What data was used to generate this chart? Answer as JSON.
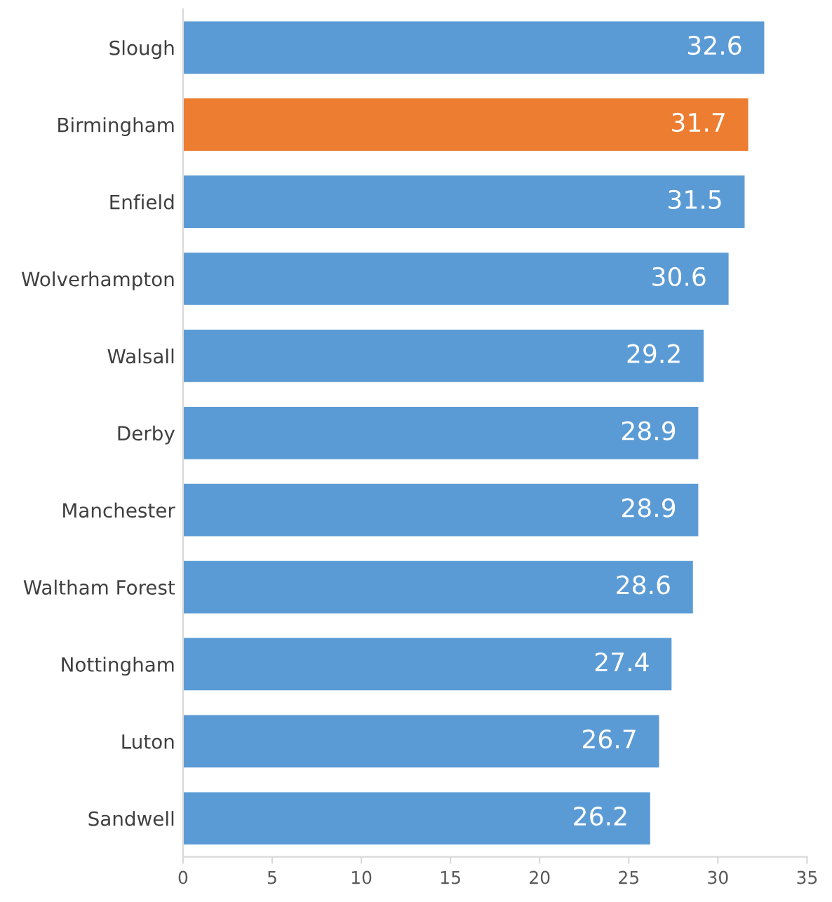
{
  "chart_data": {
    "type": "bar",
    "orientation": "horizontal",
    "categories": [
      "Slough",
      "Birmingham",
      "Enfield",
      "Wolverhampton",
      "Walsall",
      "Derby",
      "Manchester",
      "Waltham Forest",
      "Nottingham",
      "Luton",
      "Sandwell"
    ],
    "values": [
      32.6,
      31.7,
      31.5,
      30.6,
      29.2,
      28.9,
      28.9,
      28.6,
      27.4,
      26.7,
      26.2
    ],
    "colors": [
      "#5b9bd5",
      "#ed7d31",
      "#5b9bd5",
      "#5b9bd5",
      "#5b9bd5",
      "#5b9bd5",
      "#5b9bd5",
      "#5b9bd5",
      "#5b9bd5",
      "#5b9bd5",
      "#5b9bd5"
    ],
    "xlim": [
      0,
      35
    ],
    "xticks": [
      0,
      5,
      10,
      15,
      20,
      25,
      30,
      35
    ],
    "data_labels": true,
    "grid": false,
    "legend": false
  }
}
